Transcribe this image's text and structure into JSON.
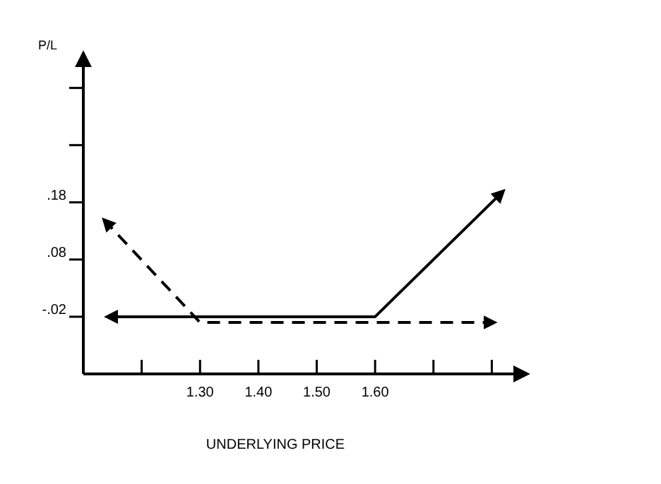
{
  "chart_data": {
    "type": "line",
    "xlabel": "UNDERLYING PRICE",
    "ylabel": "P/L",
    "xlim": [
      1.1,
      1.86
    ],
    "ylim": [
      -0.12,
      0.44
    ],
    "xticks": [
      {
        "value": 1.2,
        "label": null
      },
      {
        "value": 1.3,
        "label": "1.30"
      },
      {
        "value": 1.4,
        "label": "1.40"
      },
      {
        "value": 1.5,
        "label": "1.50"
      },
      {
        "value": 1.6,
        "label": "1.60"
      },
      {
        "value": 1.7,
        "label": null
      },
      {
        "value": 1.8,
        "label": null
      }
    ],
    "yticks": [
      {
        "value": -0.02,
        "label": "-.02"
      },
      {
        "value": 0.08,
        "label": ".08"
      },
      {
        "value": 0.18,
        "label": ".18"
      },
      {
        "value": 0.28,
        "label": null
      },
      {
        "value": 0.38,
        "label": null
      }
    ],
    "series": [
      {
        "color": "#000000",
        "line_style": "solid",
        "x": [
          1.14,
          1.6,
          1.82
        ],
        "values": [
          -0.02,
          -0.02,
          0.2
        ]
      },
      {
        "color": "#000000",
        "line_style": "dashed",
        "x": [
          1.135,
          1.3,
          1.805
        ],
        "values": [
          0.15,
          -0.03,
          -0.03
        ]
      }
    ],
    "grid": false,
    "marker": "none"
  }
}
